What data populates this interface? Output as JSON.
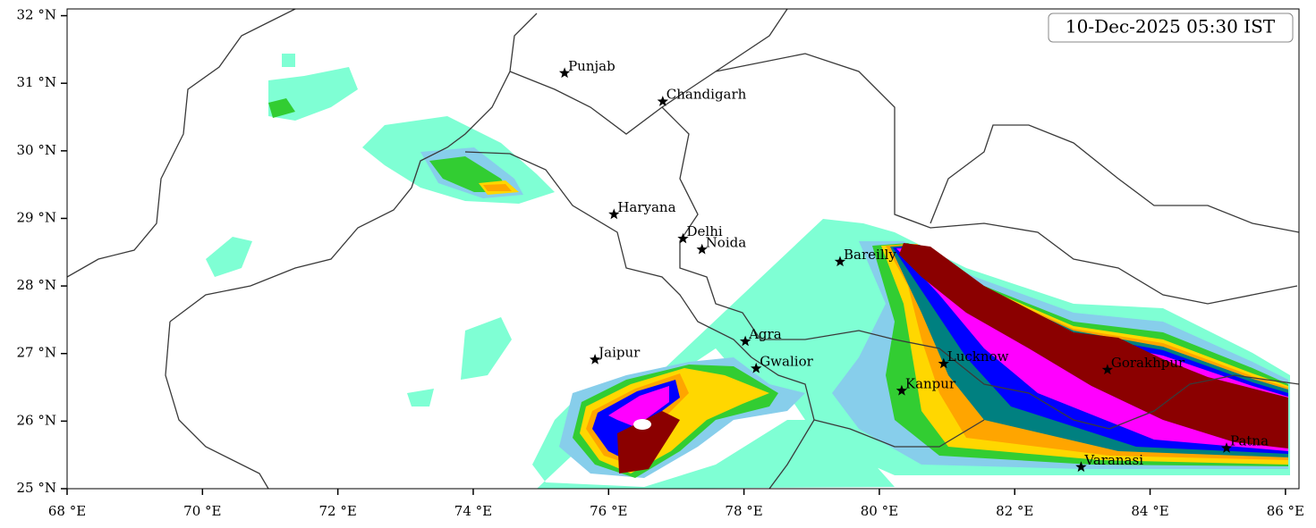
{
  "header": {
    "timestamp": "10-Dec-2025 05:30 IST"
  },
  "map": {
    "xlim": [
      68,
      86.2
    ],
    "ylim": [
      25,
      32.1
    ],
    "xticks": [
      {
        "value": 68,
        "label": "68 °E"
      },
      {
        "value": 70,
        "label": "70 °E"
      },
      {
        "value": 72,
        "label": "72 °E"
      },
      {
        "value": 74,
        "label": "74 °E"
      },
      {
        "value": 76,
        "label": "76 °E"
      },
      {
        "value": 78,
        "label": "78 °E"
      },
      {
        "value": 80,
        "label": "80 °E"
      },
      {
        "value": 82,
        "label": "82 °E"
      },
      {
        "value": 84,
        "label": "84 °E"
      },
      {
        "value": 86,
        "label": "86 °E"
      }
    ],
    "yticks": [
      {
        "value": 25,
        "label": "25 °N"
      },
      {
        "value": 26,
        "label": "26 °N"
      },
      {
        "value": 27,
        "label": "27 °N"
      },
      {
        "value": 28,
        "label": "28 °N"
      },
      {
        "value": 29,
        "label": "29 °N"
      },
      {
        "value": 30,
        "label": "30 °N"
      },
      {
        "value": 31,
        "label": "31 °N"
      },
      {
        "value": 32,
        "label": "32 °N"
      }
    ],
    "cities": [
      {
        "name": "Punjab",
        "lon": 75.35,
        "lat": 31.15
      },
      {
        "name": "Chandigarh",
        "lon": 76.8,
        "lat": 30.73
      },
      {
        "name": "Haryana",
        "lon": 76.08,
        "lat": 29.06
      },
      {
        "name": "Delhi",
        "lon": 77.1,
        "lat": 28.7
      },
      {
        "name": "Noida",
        "lon": 77.38,
        "lat": 28.54
      },
      {
        "name": "Bareilly",
        "lon": 79.42,
        "lat": 28.36
      },
      {
        "name": "Agra",
        "lon": 78.02,
        "lat": 27.18
      },
      {
        "name": "Jaipur",
        "lon": 75.8,
        "lat": 26.91
      },
      {
        "name": "Gwalior",
        "lon": 78.18,
        "lat": 26.78
      },
      {
        "name": "Lucknow",
        "lon": 80.95,
        "lat": 26.85
      },
      {
        "name": "Kanpur",
        "lon": 80.33,
        "lat": 26.45
      },
      {
        "name": "Gorakhpur",
        "lon": 83.37,
        "lat": 26.76
      },
      {
        "name": "Varanasi",
        "lon": 82.98,
        "lat": 25.32
      },
      {
        "name": "Patna",
        "lon": 85.13,
        "lat": 25.6
      }
    ]
  }
}
